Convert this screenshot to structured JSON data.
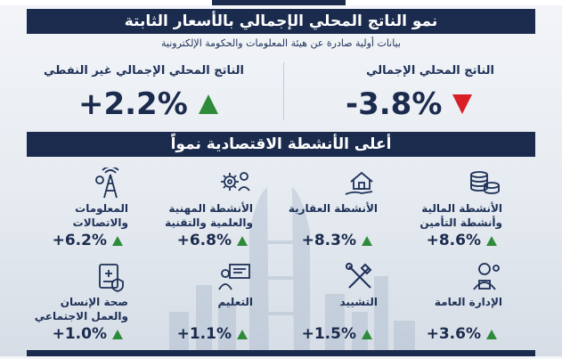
{
  "header": {
    "title": "نمو الناتج المحلي الإجمالي بالأسعار الثابتة",
    "subtitle": "بيانات أولية صادرة عن هيئة المعلومات والحكومة الإلكترونية"
  },
  "kpis": {
    "gdp": {
      "label": "الناتج المحلي الإجمالي",
      "value": "-3.8%",
      "direction": "down"
    },
    "non_oil": {
      "label": "الناتج المحلي الإجمالي غير النفطي",
      "value": "+2.2%",
      "direction": "up"
    }
  },
  "section": {
    "title": "أعلى الأنشطة الاقتصادية نمواً"
  },
  "sectors": [
    {
      "name": "الأنشطة المالية\nوأنشطة التأمين",
      "value": "+8.6%",
      "icon": "coins-icon"
    },
    {
      "name": "الأنشطة العقارية",
      "value": "+8.3%",
      "icon": "house-hand-icon"
    },
    {
      "name": "الأنشطة المهنية\nوالعلمية والتقنية",
      "value": "+6.8%",
      "icon": "professional-gear-icon"
    },
    {
      "name": "المعلومات\nوالاتصالات",
      "value": "+6.2%",
      "icon": "telecom-tower-icon"
    },
    {
      "name": "الإدارة العامة",
      "value": "+3.6%",
      "icon": "administrator-icon"
    },
    {
      "name": "التشييد",
      "value": "+1.5%",
      "icon": "tools-icon"
    },
    {
      "name": "التعليم",
      "value": "+1.1%",
      "icon": "teacher-board-icon"
    },
    {
      "name": "صحة الإنسان\nوالعمل الاجتماعي",
      "value": "+1.0%",
      "icon": "medical-report-icon"
    }
  ],
  "colors": {
    "navy": "#1b2b4d",
    "up": "#2e8b3a",
    "down": "#d91f26"
  }
}
